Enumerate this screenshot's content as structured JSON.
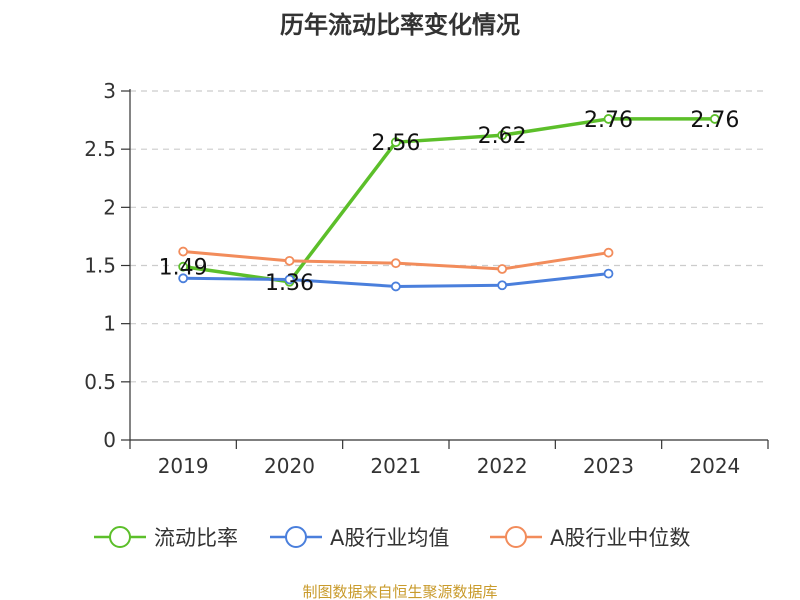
{
  "chart_data": {
    "type": "line",
    "title": "历年流动比率变化情况",
    "categories": [
      "2019",
      "2020",
      "2021",
      "2022",
      "2023",
      "2024"
    ],
    "ylim": [
      0,
      3
    ],
    "yticks": [
      "0",
      "0.5",
      "1",
      "1.5",
      "2",
      "2.5",
      "3"
    ],
    "grid": true,
    "legend_position": "bottom",
    "series": [
      {
        "name": "流动比率",
        "color": "#5cbf2a",
        "values": [
          1.49,
          1.36,
          2.56,
          2.62,
          2.76,
          2.76
        ],
        "labels": [
          "1.49",
          "1.36",
          "2.56",
          "2.62",
          "2.76",
          "2.76"
        ]
      },
      {
        "name": "A股行业均值",
        "color": "#4a7fdc",
        "values": [
          1.39,
          1.38,
          1.32,
          1.33,
          1.43,
          null
        ]
      },
      {
        "name": "A股行业中位数",
        "color": "#f28c5b",
        "values": [
          1.62,
          1.54,
          1.52,
          1.47,
          1.61,
          null
        ]
      }
    ]
  },
  "footer": "制图数据来自恒生聚源数据库"
}
